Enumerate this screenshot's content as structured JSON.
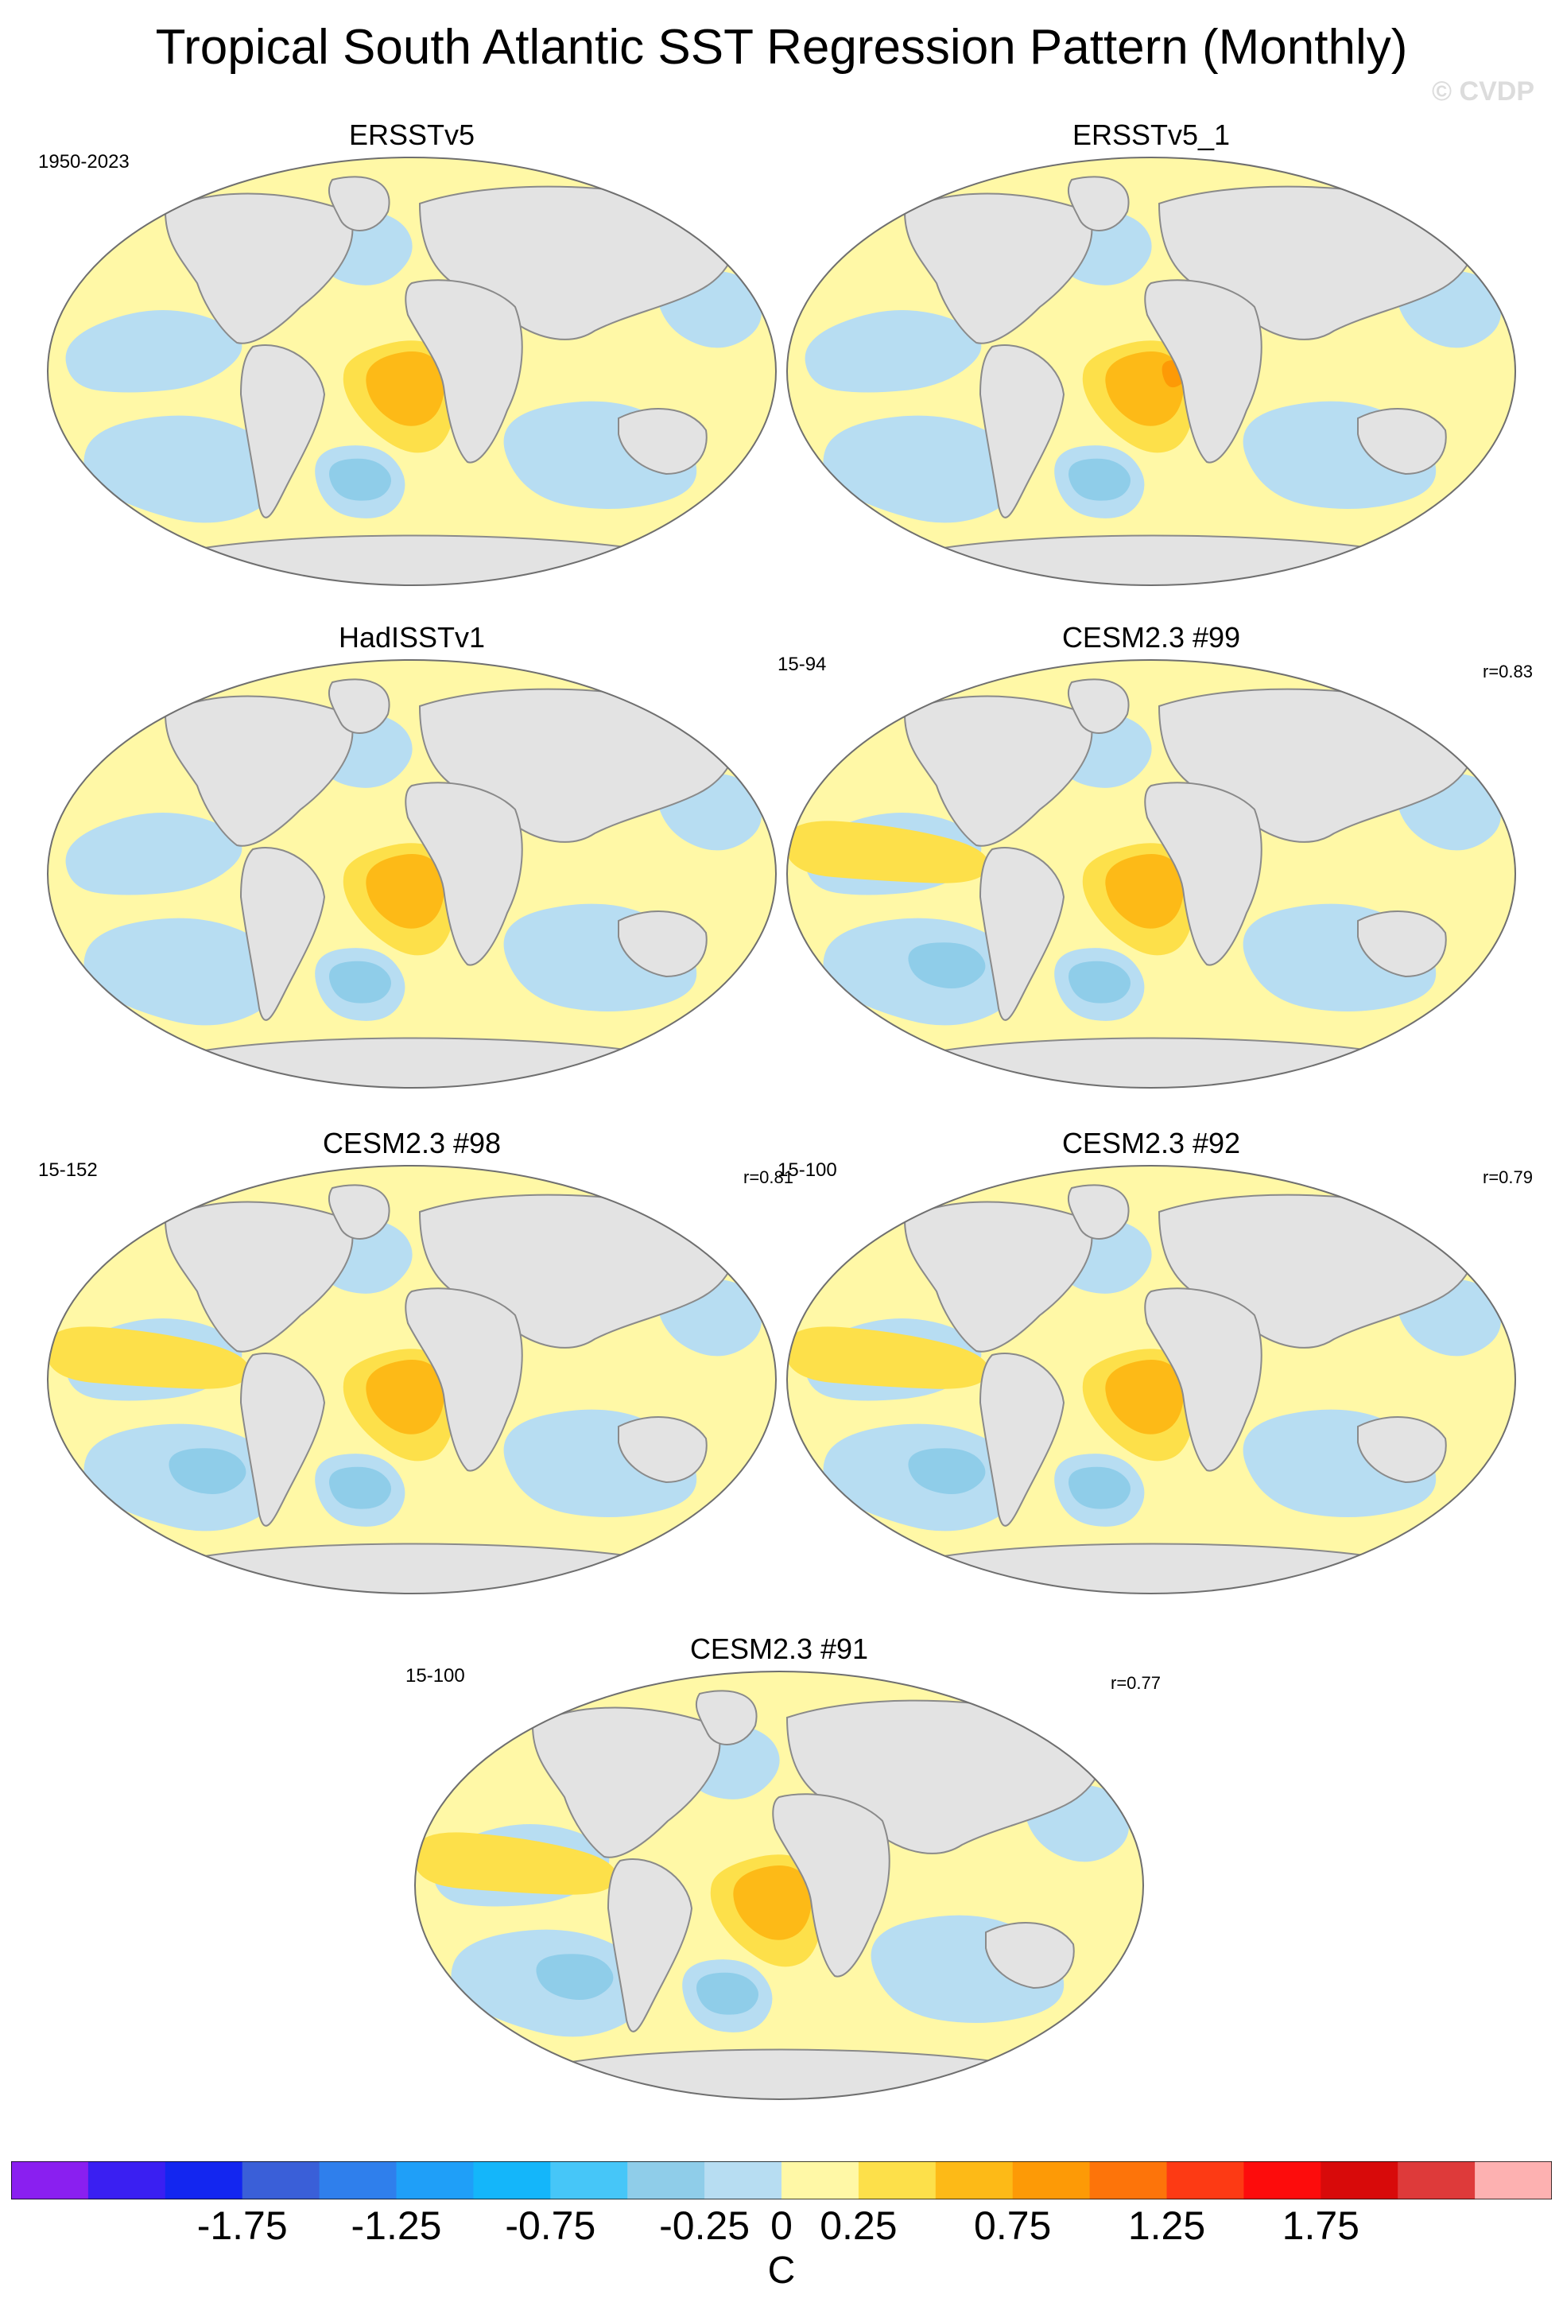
{
  "title": "Tropical South Atlantic SST Regression Pattern (Monthly)",
  "watermark": "© CVDP",
  "chart_data": {
    "type": "heatmap",
    "projection": "global map (Robinson-like)",
    "panels": [
      {
        "title": "ERSSTv5",
        "period": "1950-2023",
        "corr": ""
      },
      {
        "title": "ERSSTv5_1",
        "period": "",
        "corr": ""
      },
      {
        "title": "HadISSTv1",
        "period": "",
        "corr": ""
      },
      {
        "title": "CESM2.3 #99",
        "period": "15-94",
        "corr": "r=0.83"
      },
      {
        "title": "CESM2.3 #98",
        "period": "15-152",
        "corr": "r=0.81"
      },
      {
        "title": "CESM2.3 #92",
        "period": "15-100",
        "corr": "r=0.79"
      },
      {
        "title": "CESM2.3 #91",
        "period": "15-100",
        "corr": "r=0.77"
      }
    ],
    "colorbar": {
      "levels": [
        -1.75,
        -1.5,
        -1.25,
        -1,
        -0.75,
        -0.5,
        -0.25,
        0,
        0.25,
        0.5,
        0.75,
        1,
        1.25,
        1.5,
        1.75
      ],
      "tick_labels": [
        "-1.75",
        "-1.25",
        "-0.75",
        "-0.25",
        "0",
        "0.25",
        "0.75",
        "1.25",
        "1.75"
      ],
      "tick_values": [
        -1.75,
        -1.25,
        -0.75,
        -0.25,
        0,
        0.25,
        0.75,
        1.25,
        1.75
      ],
      "colors": [
        "#8a1ff0",
        "#3a1ff2",
        "#1326f0",
        "#3a5fd8",
        "#2f7fec",
        "#1f9ff8",
        "#14b6fa",
        "#46c6f8",
        "#8fcde9",
        "#b7ddf2",
        "#fff8a6",
        "#fde04a",
        "#fdba17",
        "#fd9a06",
        "#fd740a",
        "#fd3a14",
        "#fd0c0c",
        "#d80a0a",
        "#de3a3a",
        "#fdb1b1"
      ],
      "units": "C"
    }
  }
}
